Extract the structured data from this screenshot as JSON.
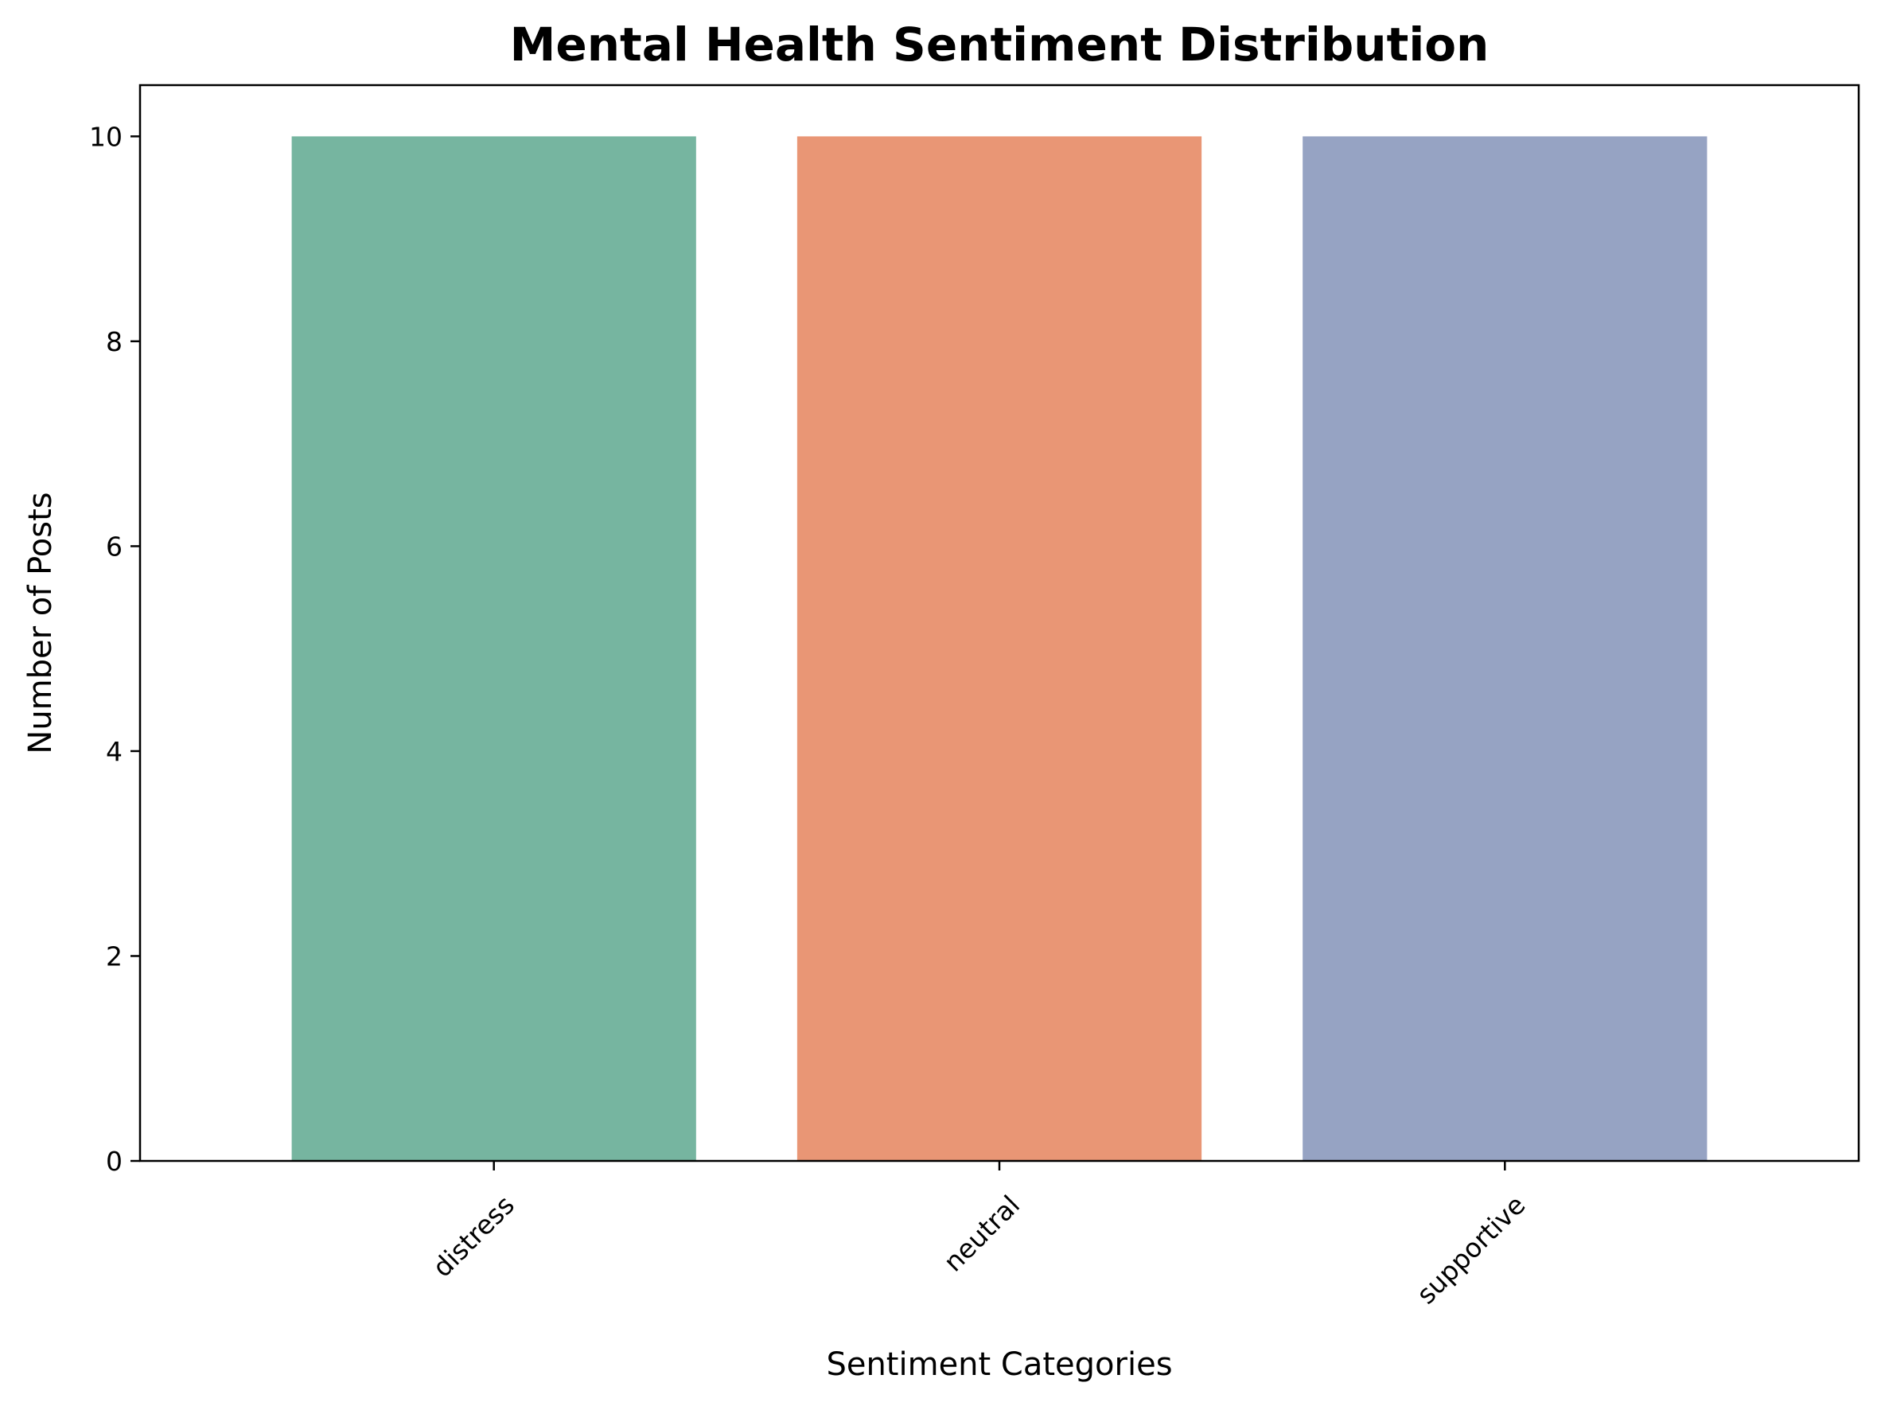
{
  "chart_data": {
    "type": "bar",
    "title": "Mental Health Sentiment Distribution",
    "xlabel": "Sentiment Categories",
    "ylabel": "Number of Posts",
    "categories": [
      "distress",
      "neutral",
      "supportive"
    ],
    "values": [
      10,
      10,
      10
    ],
    "colors": [
      "#76b5a0",
      "#e99675",
      "#96a3c3"
    ],
    "ylim": [
      0,
      10.5
    ],
    "yticks": [
      0,
      2,
      4,
      6,
      8,
      10
    ],
    "grid": false,
    "legend": "none"
  }
}
